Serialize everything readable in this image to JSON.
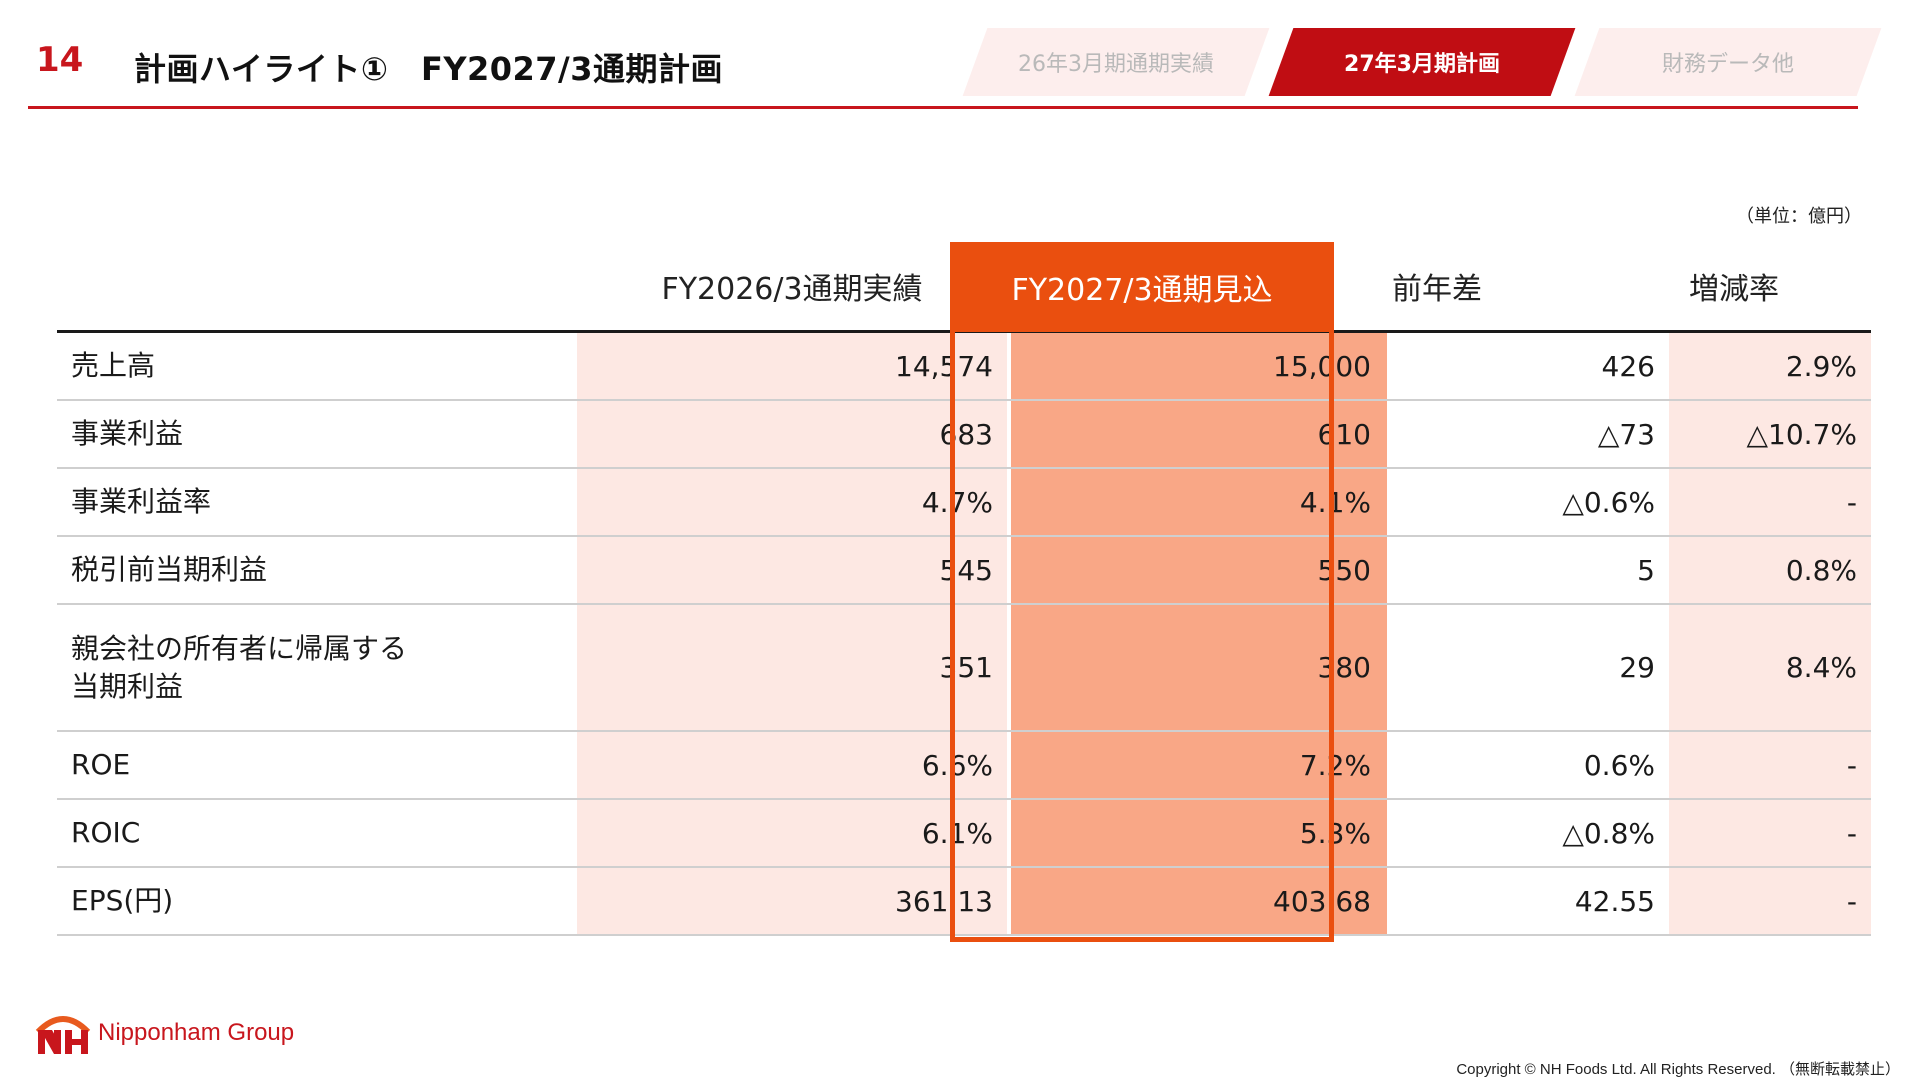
{
  "header": {
    "slide_number": "14",
    "title": "計画ハイライト①　FY2027/3通期計画",
    "tabs": [
      {
        "label": "26年3月期通期実績",
        "active": false
      },
      {
        "label": "27年3月期計画",
        "active": true
      },
      {
        "label": "財務データ他",
        "active": false
      }
    ]
  },
  "unit_note": "（単位：億円）",
  "table": {
    "columns": [
      "",
      "FY2026/3通期実績",
      "FY2027/3通期見込",
      "前年差",
      "増減率"
    ],
    "rows": [
      {
        "label": "売上高",
        "fy26": "14,574",
        "fy27": "15,000",
        "diff": "426",
        "rate": "2.9%"
      },
      {
        "label": "事業利益",
        "fy26": "683",
        "fy27": "610",
        "diff": "△73",
        "rate": "△10.7%"
      },
      {
        "label": "事業利益率",
        "fy26": "4.7%",
        "fy27": "4.1%",
        "diff": "△0.6%",
        "rate": "-"
      },
      {
        "label": "税引前当期利益",
        "fy26": "545",
        "fy27": "550",
        "diff": "5",
        "rate": "0.8%"
      },
      {
        "label": "親会社の所有者に帰属する",
        "label2": "当期利益",
        "fy26": "351",
        "fy27": "380",
        "diff": "29",
        "rate": "8.4%"
      },
      {
        "label": "ROE",
        "fy26": "6.6%",
        "fy27": "7.2%",
        "diff": "0.6%",
        "rate": "-"
      },
      {
        "label": "ROIC",
        "fy26": "6.1%",
        "fy27": "5.3%",
        "diff": "△0.8%",
        "rate": "-"
      },
      {
        "label": "EPS(円)",
        "fy26": "361.13",
        "fy27": "403.68",
        "diff": "42.55",
        "rate": "-"
      }
    ]
  },
  "footer": {
    "logo_text": "Nipponham Group",
    "copyright": "Copyright © NH Foods Ltd. All Rights Reserved. （無断転載禁止）"
  },
  "colors": {
    "brand_red": "#c8161d",
    "highlight_orange": "#ea4f0f",
    "highlight_fill": "#f9a786",
    "light_pink": "#fde8e3"
  }
}
